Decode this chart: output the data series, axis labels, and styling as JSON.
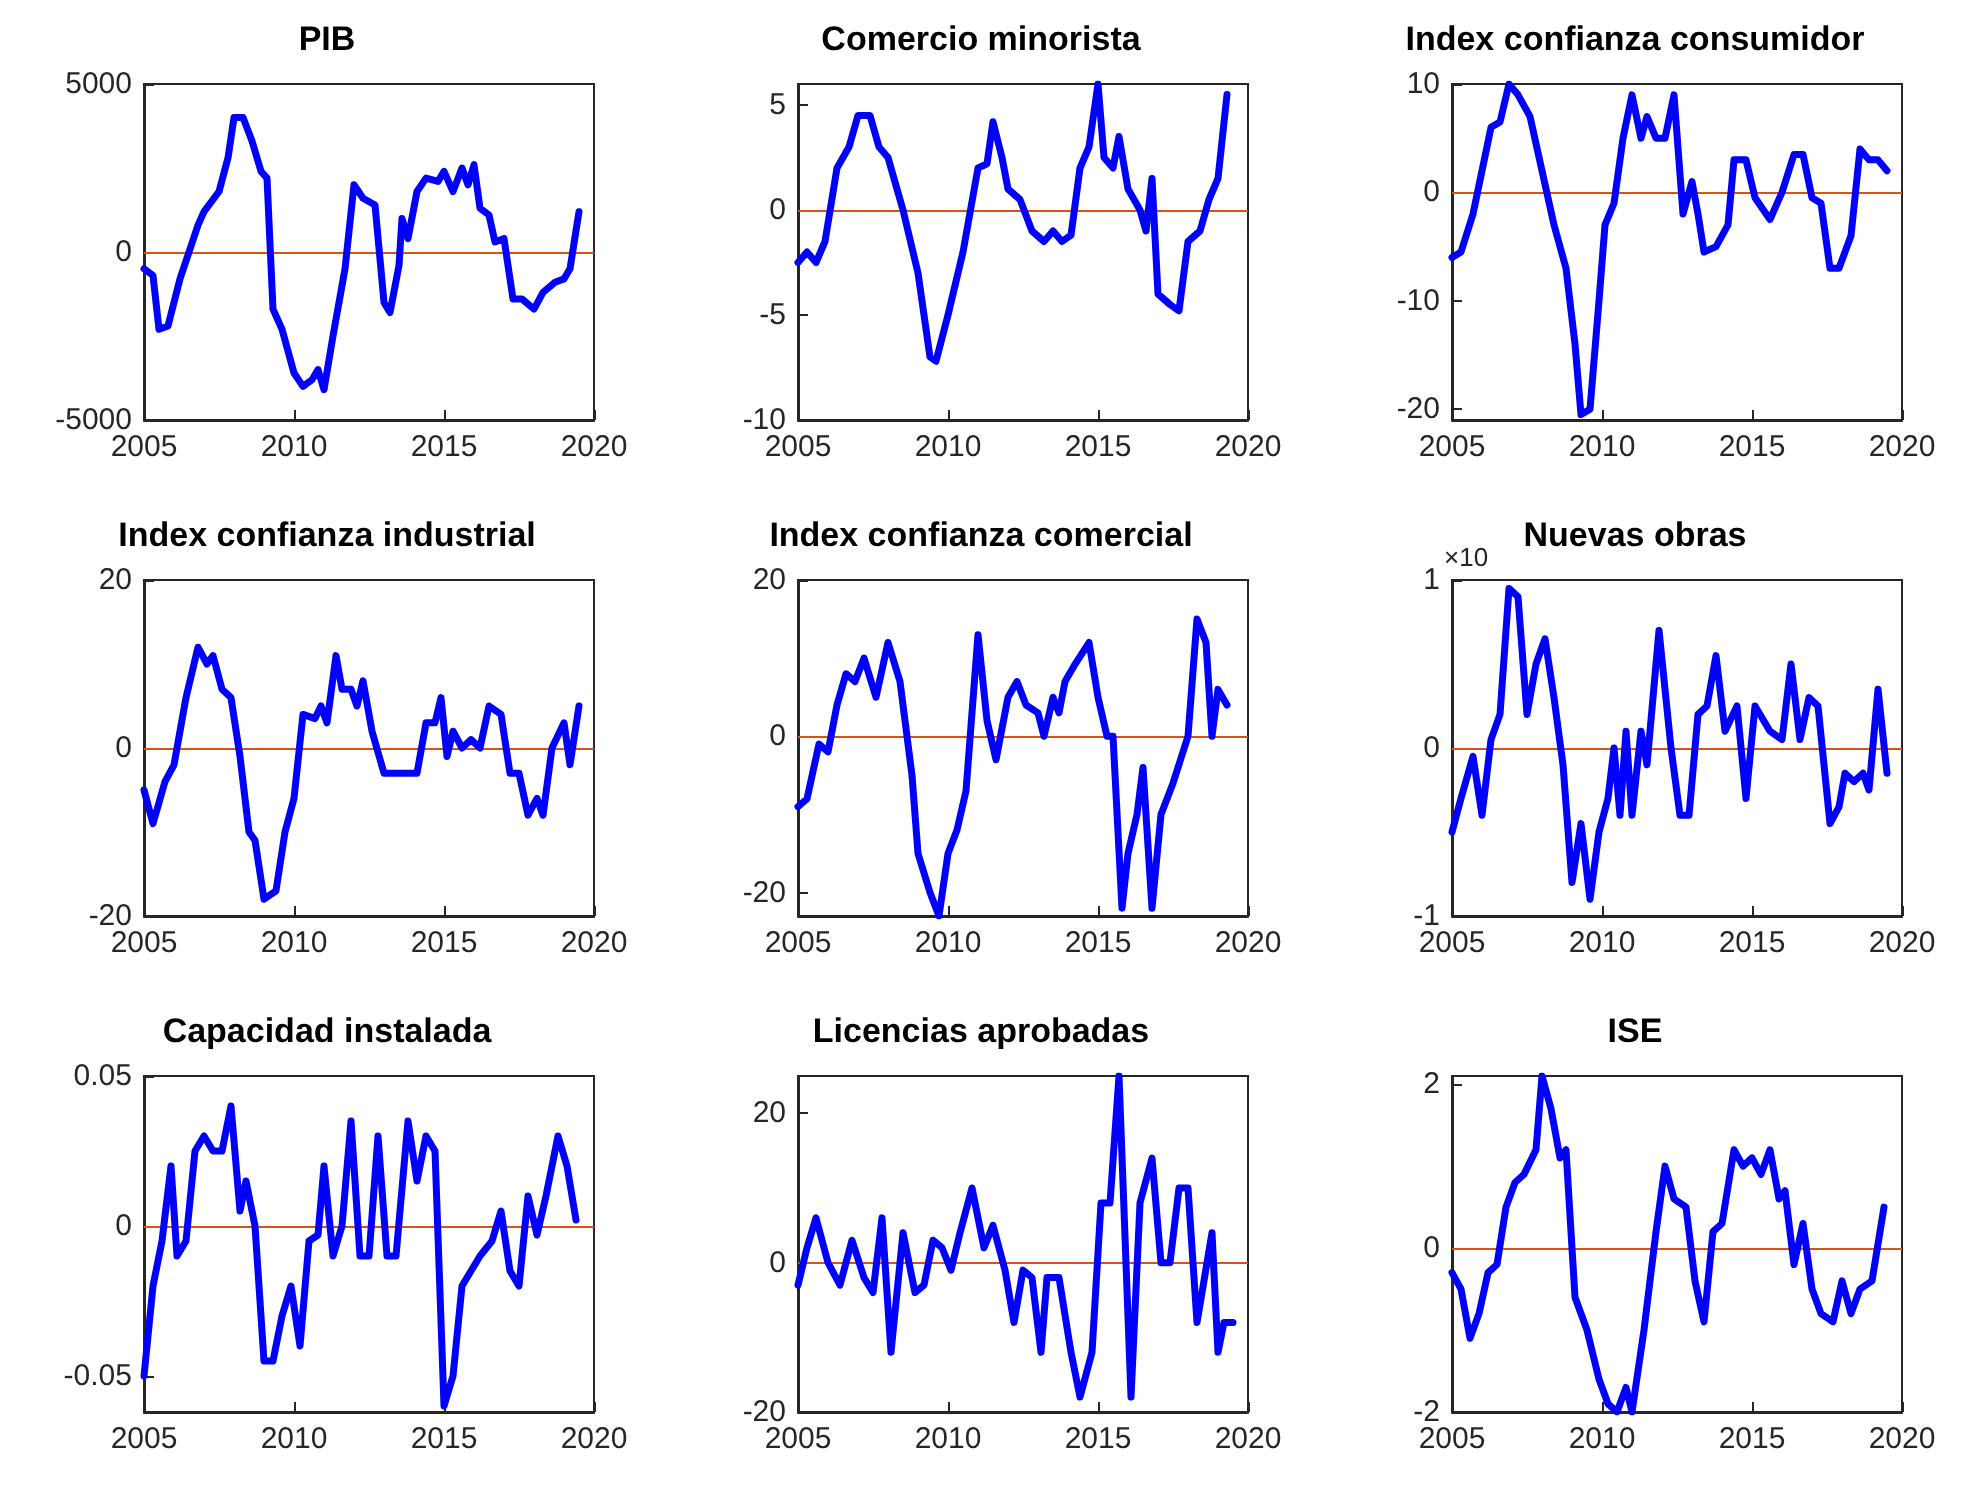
{
  "chart_data": [
    {
      "type": "line",
      "title": "PIB",
      "xlim": [
        2005,
        2020
      ],
      "xticks": [
        2005,
        2010,
        2015,
        2020
      ],
      "ylim": [
        -5000,
        5000
      ],
      "yticks": [
        -5000,
        0,
        5000
      ],
      "grid": false,
      "marker": "none",
      "ref_lines": [
        {
          "axis": "y",
          "value": 0,
          "color": "#d95319"
        }
      ],
      "series": [
        {
          "color": "#0000ff",
          "x": [
            2005,
            2005.3,
            2005.5,
            2005.8,
            2006.2,
            2006.5,
            2006.8,
            2007,
            2007.5,
            2007.8,
            2008,
            2008.3,
            2008.6,
            2008.9,
            2009.1,
            2009.3,
            2009.6,
            2010,
            2010.3,
            2010.6,
            2010.8,
            2011,
            2011.3,
            2011.7,
            2012,
            2012.3,
            2012.7,
            2013,
            2013.2,
            2013.5,
            2013.6,
            2013.8,
            2014.1,
            2014.4,
            2014.8,
            2015,
            2015.3,
            2015.6,
            2015.8,
            2016,
            2016.2,
            2016.5,
            2016.7,
            2017,
            2017.3,
            2017.6,
            2018,
            2018.3,
            2018.7,
            2019,
            2019.2,
            2019.5
          ],
          "values": [
            -500,
            -700,
            -2300,
            -2200,
            -800,
            0,
            800,
            1200,
            1800,
            2800,
            4000,
            4000,
            3300,
            2400,
            2200,
            -1700,
            -2300,
            -3600,
            -4000,
            -3800,
            -3500,
            -4100,
            -2500,
            -500,
            2000,
            1600,
            1400,
            -1500,
            -1800,
            -400,
            1000,
            400,
            1800,
            2200,
            2100,
            2400,
            1800,
            2500,
            2000,
            2600,
            1300,
            1100,
            300,
            400,
            -1400,
            -1400,
            -1700,
            -1200,
            -900,
            -800,
            -500,
            1200
          ]
        }
      ]
    },
    {
      "type": "line",
      "title": "Comercio minorista",
      "xlim": [
        2005,
        2020
      ],
      "xticks": [
        2005,
        2010,
        2015,
        2020
      ],
      "ylim": [
        -10,
        6
      ],
      "yticks": [
        -10,
        -5,
        0,
        5
      ],
      "grid": false,
      "marker": "none",
      "ref_lines": [
        {
          "axis": "y",
          "value": 0,
          "color": "#d95319"
        }
      ],
      "series": [
        {
          "color": "#0000ff",
          "x": [
            2005,
            2005.3,
            2005.6,
            2005.9,
            2006.3,
            2006.7,
            2007,
            2007.4,
            2007.7,
            2008,
            2008.5,
            2009,
            2009.4,
            2009.6,
            2010,
            2010.5,
            2011,
            2011.3,
            2011.5,
            2011.8,
            2012,
            2012.4,
            2012.8,
            2013.2,
            2013.5,
            2013.8,
            2014.1,
            2014.4,
            2014.7,
            2015,
            2015.2,
            2015.5,
            2015.7,
            2016,
            2016.4,
            2016.6,
            2016.8,
            2017,
            2017.4,
            2017.7,
            2018,
            2018.4,
            2018.7,
            2019,
            2019.3
          ],
          "values": [
            -2.5,
            -2,
            -2.5,
            -1.5,
            2,
            3,
            4.5,
            4.5,
            3,
            2.5,
            0,
            -3,
            -7,
            -7.2,
            -5,
            -2,
            2,
            2.2,
            4.2,
            2.5,
            1,
            0.5,
            -1,
            -1.5,
            -1,
            -1.5,
            -1.2,
            2,
            3,
            6,
            2.5,
            2,
            3.5,
            1,
            0,
            -1,
            1.5,
            -4,
            -4.5,
            -4.8,
            -1.5,
            -1,
            0.5,
            1.5,
            5.5
          ]
        }
      ]
    },
    {
      "type": "line",
      "title": "Index confianza consumidor",
      "xlim": [
        2005,
        2020
      ],
      "xticks": [
        2005,
        2010,
        2015,
        2020
      ],
      "ylim": [
        -21,
        10
      ],
      "yticks": [
        -20,
        -10,
        0,
        10
      ],
      "grid": false,
      "marker": "none",
      "ref_lines": [
        {
          "axis": "y",
          "value": 0,
          "color": "#d95319"
        }
      ],
      "series": [
        {
          "color": "#0000ff",
          "x": [
            2005,
            2005.3,
            2005.7,
            2006,
            2006.3,
            2006.6,
            2006.9,
            2007.2,
            2007.6,
            2008,
            2008.4,
            2008.8,
            2009.1,
            2009.3,
            2009.6,
            2009.9,
            2010.1,
            2010.4,
            2010.7,
            2011,
            2011.3,
            2011.5,
            2011.8,
            2012.1,
            2012.4,
            2012.7,
            2013,
            2013.2,
            2013.4,
            2013.8,
            2014.2,
            2014.4,
            2014.8,
            2015.1,
            2015.6,
            2016,
            2016.4,
            2016.7,
            2017,
            2017.3,
            2017.6,
            2017.9,
            2018.3,
            2018.6,
            2018.9,
            2019.2,
            2019.5
          ],
          "values": [
            -6,
            -5.5,
            -2,
            2,
            6,
            6.5,
            10,
            9,
            7,
            2,
            -3,
            -7,
            -14,
            -20.5,
            -20,
            -10,
            -3,
            -1,
            5,
            9,
            5,
            7,
            5,
            5,
            9,
            -2,
            1,
            -2,
            -5.5,
            -5,
            -3,
            3,
            3,
            -0.5,
            -2.5,
            0,
            3.5,
            3.5,
            -0.5,
            -1,
            -7,
            -7,
            -4,
            4,
            3,
            3,
            2
          ]
        }
      ]
    },
    {
      "type": "line",
      "title": "Index confianza industrial",
      "xlim": [
        2005,
        2020
      ],
      "xticks": [
        2005,
        2010,
        2015,
        2020
      ],
      "ylim": [
        -20,
        20
      ],
      "yticks": [
        -20,
        0,
        20
      ],
      "grid": false,
      "marker": "none",
      "ref_lines": [
        {
          "axis": "y",
          "value": 0,
          "color": "#d95319"
        }
      ],
      "series": [
        {
          "color": "#0000ff",
          "x": [
            2005,
            2005.3,
            2005.7,
            2006,
            2006.4,
            2006.8,
            2007.1,
            2007.3,
            2007.6,
            2007.9,
            2008.2,
            2008.5,
            2008.7,
            2009,
            2009.4,
            2009.7,
            2010,
            2010.3,
            2010.7,
            2010.9,
            2011.1,
            2011.4,
            2011.6,
            2011.9,
            2012.1,
            2012.3,
            2012.6,
            2013,
            2013.4,
            2013.8,
            2014.1,
            2014.4,
            2014.7,
            2014.9,
            2015.1,
            2015.3,
            2015.6,
            2015.9,
            2016.2,
            2016.5,
            2016.9,
            2017.2,
            2017.5,
            2017.8,
            2018.1,
            2018.3,
            2018.6,
            2019,
            2019.2,
            2019.5
          ],
          "values": [
            -5,
            -9,
            -4,
            -2,
            6,
            12,
            10,
            11,
            7,
            6,
            -1,
            -10,
            -11,
            -18,
            -17,
            -10,
            -6,
            4,
            3.5,
            5,
            3,
            11,
            7,
            7,
            5,
            8,
            2,
            -3,
            -3,
            -3,
            -3,
            3,
            3,
            6,
            -1,
            2,
            0,
            1,
            0,
            5,
            4,
            -3,
            -3,
            -8,
            -6,
            -8,
            0,
            3,
            -2,
            5
          ]
        }
      ]
    },
    {
      "type": "line",
      "title": "Index confianza comercial",
      "xlim": [
        2005,
        2020
      ],
      "xticks": [
        2005,
        2010,
        2015,
        2020
      ],
      "ylim": [
        -23,
        20
      ],
      "yticks": [
        -20,
        0,
        20
      ],
      "grid": false,
      "marker": "none",
      "ref_lines": [
        {
          "axis": "y",
          "value": 0,
          "color": "#d95319"
        }
      ],
      "series": [
        {
          "color": "#0000ff",
          "x": [
            2005,
            2005.3,
            2005.7,
            2006,
            2006.3,
            2006.6,
            2006.9,
            2007.2,
            2007.6,
            2008,
            2008.4,
            2008.8,
            2009,
            2009.4,
            2009.7,
            2010,
            2010.3,
            2010.6,
            2011,
            2011.3,
            2011.6,
            2012,
            2012.3,
            2012.6,
            2013,
            2013.2,
            2013.5,
            2013.7,
            2013.9,
            2014.2,
            2014.7,
            2015,
            2015.3,
            2015.5,
            2015.8,
            2016,
            2016.3,
            2016.5,
            2016.8,
            2017.1,
            2017.5,
            2018,
            2018.3,
            2018.6,
            2018.8,
            2019,
            2019.3
          ],
          "values": [
            -9,
            -8,
            -1,
            -2,
            4,
            8,
            7,
            10,
            5,
            12,
            7,
            -5,
            -15,
            -20,
            -23,
            -15,
            -12,
            -7,
            13,
            2,
            -3,
            5,
            7,
            4,
            3,
            0,
            5,
            3,
            7,
            9,
            12,
            5,
            0,
            0,
            -22,
            -15,
            -10,
            -4,
            -22,
            -10,
            -6,
            0,
            15,
            12,
            0,
            6,
            4
          ]
        }
      ]
    },
    {
      "type": "line",
      "title": "Nuevas obras",
      "annotations": [
        "×10"
      ],
      "xlim": [
        2005,
        2020
      ],
      "xticks": [
        2005,
        2010,
        2015,
        2020
      ],
      "ylim": [
        -1,
        1
      ],
      "yticks": [
        -1,
        0,
        1
      ],
      "grid": false,
      "marker": "none",
      "ref_lines": [
        {
          "axis": "y",
          "value": 0,
          "color": "#d95319"
        }
      ],
      "series": [
        {
          "color": "#0000ff",
          "x": [
            2005,
            2005.3,
            2005.7,
            2006,
            2006.3,
            2006.6,
            2006.9,
            2007.2,
            2007.5,
            2007.8,
            2008.1,
            2008.4,
            2008.7,
            2009,
            2009.3,
            2009.6,
            2009.9,
            2010.2,
            2010.4,
            2010.6,
            2010.8,
            2011,
            2011.3,
            2011.5,
            2011.9,
            2012.3,
            2012.6,
            2012.9,
            2013.2,
            2013.5,
            2013.8,
            2014.1,
            2014.5,
            2014.8,
            2015.1,
            2015.6,
            2016,
            2016.3,
            2016.6,
            2016.9,
            2017.2,
            2017.6,
            2017.9,
            2018.1,
            2018.4,
            2018.7,
            2018.9,
            2019.2,
            2019.5
          ],
          "values": [
            -0.5,
            -0.3,
            -0.05,
            -0.4,
            0.05,
            0.2,
            0.95,
            0.9,
            0.2,
            0.5,
            0.65,
            0.3,
            -0.1,
            -0.8,
            -0.45,
            -0.9,
            -0.5,
            -0.3,
            0,
            -0.4,
            0.1,
            -0.4,
            0.1,
            -0.1,
            0.7,
            0,
            -0.4,
            -0.4,
            0.2,
            0.25,
            0.55,
            0.1,
            0.25,
            -0.3,
            0.25,
            0.1,
            0.05,
            0.5,
            0.05,
            0.3,
            0.25,
            -0.45,
            -0.35,
            -0.15,
            -0.2,
            -0.15,
            -0.25,
            0.35,
            -0.15
          ]
        }
      ]
    },
    {
      "type": "line",
      "title": "Capacidad instalada",
      "xlim": [
        2005,
        2020
      ],
      "xticks": [
        2005,
        2010,
        2015,
        2020
      ],
      "ylim": [
        -0.062,
        0.05
      ],
      "yticks": [
        -0.05,
        0,
        0.05
      ],
      "grid": false,
      "marker": "none",
      "ref_lines": [
        {
          "axis": "y",
          "value": 0,
          "color": "#d95319"
        }
      ],
      "series": [
        {
          "color": "#0000ff",
          "x": [
            2005,
            2005.3,
            2005.6,
            2005.9,
            2006.1,
            2006.4,
            2006.7,
            2007,
            2007.3,
            2007.6,
            2007.9,
            2008.2,
            2008.4,
            2008.7,
            2009,
            2009.3,
            2009.6,
            2009.9,
            2010.2,
            2010.5,
            2010.8,
            2011,
            2011.3,
            2011.6,
            2011.9,
            2012.2,
            2012.5,
            2012.8,
            2013.1,
            2013.4,
            2013.8,
            2014.1,
            2014.4,
            2014.7,
            2015,
            2015.3,
            2015.6,
            2015.9,
            2016.2,
            2016.6,
            2016.9,
            2017.2,
            2017.5,
            2017.8,
            2018.1,
            2018.4,
            2018.8,
            2019.1,
            2019.4
          ],
          "values": [
            -0.05,
            -0.02,
            -0.005,
            0.02,
            -0.01,
            -0.005,
            0.025,
            0.03,
            0.025,
            0.025,
            0.04,
            0.005,
            0.015,
            0,
            -0.045,
            -0.045,
            -0.03,
            -0.02,
            -0.04,
            -0.005,
            -0.003,
            0.02,
            -0.01,
            0,
            0.035,
            -0.01,
            -0.01,
            0.03,
            -0.01,
            -0.01,
            0.035,
            0.015,
            0.03,
            0.025,
            -0.06,
            -0.05,
            -0.02,
            -0.015,
            -0.01,
            -0.005,
            0.005,
            -0.015,
            -0.02,
            0.01,
            -0.003,
            0.01,
            0.03,
            0.02,
            0.002
          ]
        }
      ]
    },
    {
      "type": "line",
      "title": "Licencias aprobadas",
      "xlim": [
        2005,
        2020
      ],
      "xticks": [
        2005,
        2010,
        2015,
        2020
      ],
      "ylim": [
        -20,
        25
      ],
      "yticks": [
        -20,
        0,
        20
      ],
      "grid": false,
      "marker": "none",
      "ref_lines": [
        {
          "axis": "y",
          "value": 0,
          "color": "#d95319"
        }
      ],
      "series": [
        {
          "color": "#0000ff",
          "x": [
            2005,
            2005.3,
            2005.6,
            2006,
            2006.4,
            2006.8,
            2007.2,
            2007.5,
            2007.8,
            2008.1,
            2008.5,
            2008.9,
            2009.2,
            2009.5,
            2009.8,
            2010.1,
            2010.4,
            2010.8,
            2011.2,
            2011.5,
            2011.9,
            2012.2,
            2012.5,
            2012.8,
            2013.1,
            2013.3,
            2013.7,
            2014.1,
            2014.4,
            2014.8,
            2015.1,
            2015.4,
            2015.7,
            2016.1,
            2016.4,
            2016.8,
            2017.1,
            2017.4,
            2017.7,
            2018,
            2018.3,
            2018.8,
            2019,
            2019.2,
            2019.5
          ],
          "values": [
            -3,
            2,
            6,
            0,
            -3,
            3,
            -2,
            -4,
            6,
            -12,
            4,
            -4,
            -3,
            3,
            2,
            -1,
            4,
            10,
            2,
            5,
            -1,
            -8,
            -1,
            -2,
            -12,
            -2,
            -2,
            -12,
            -18,
            -12,
            8,
            8,
            25,
            -18,
            8,
            14,
            0,
            0,
            10,
            10,
            -8,
            4,
            -12,
            -8,
            -8
          ]
        }
      ]
    },
    {
      "type": "line",
      "title": "ISE",
      "xlim": [
        2005,
        2020
      ],
      "xticks": [
        2005,
        2010,
        2015,
        2020
      ],
      "ylim": [
        -2,
        2.1
      ],
      "yticks": [
        -2,
        0,
        2
      ],
      "grid": false,
      "marker": "none",
      "ref_lines": [
        {
          "axis": "y",
          "value": 0,
          "color": "#d95319"
        }
      ],
      "series": [
        {
          "color": "#0000ff",
          "x": [
            2005,
            2005.3,
            2005.6,
            2005.9,
            2006.2,
            2006.5,
            2006.8,
            2007.1,
            2007.4,
            2007.8,
            2008,
            2008.3,
            2008.6,
            2008.8,
            2009.1,
            2009.5,
            2009.9,
            2010.2,
            2010.5,
            2010.8,
            2011,
            2011.4,
            2011.8,
            2012.1,
            2012.4,
            2012.8,
            2013.1,
            2013.4,
            2013.7,
            2014,
            2014.4,
            2014.7,
            2015,
            2015.3,
            2015.6,
            2015.9,
            2016.1,
            2016.4,
            2016.7,
            2017,
            2017.3,
            2017.7,
            2018,
            2018.3,
            2018.6,
            2019,
            2019.4
          ],
          "values": [
            -0.3,
            -0.5,
            -1.1,
            -0.8,
            -0.3,
            -0.2,
            0.5,
            0.8,
            0.9,
            1.2,
            2.1,
            1.7,
            1.1,
            1.2,
            -0.6,
            -1,
            -1.6,
            -1.9,
            -2,
            -1.7,
            -2,
            -1,
            0.2,
            1,
            0.6,
            0.5,
            -0.4,
            -0.9,
            0.2,
            0.3,
            1.2,
            1,
            1.1,
            0.9,
            1.2,
            0.6,
            0.7,
            -0.2,
            0.3,
            -0.5,
            -0.8,
            -0.9,
            -0.4,
            -0.8,
            -0.5,
            -0.4,
            0.5
          ]
        }
      ]
    }
  ]
}
